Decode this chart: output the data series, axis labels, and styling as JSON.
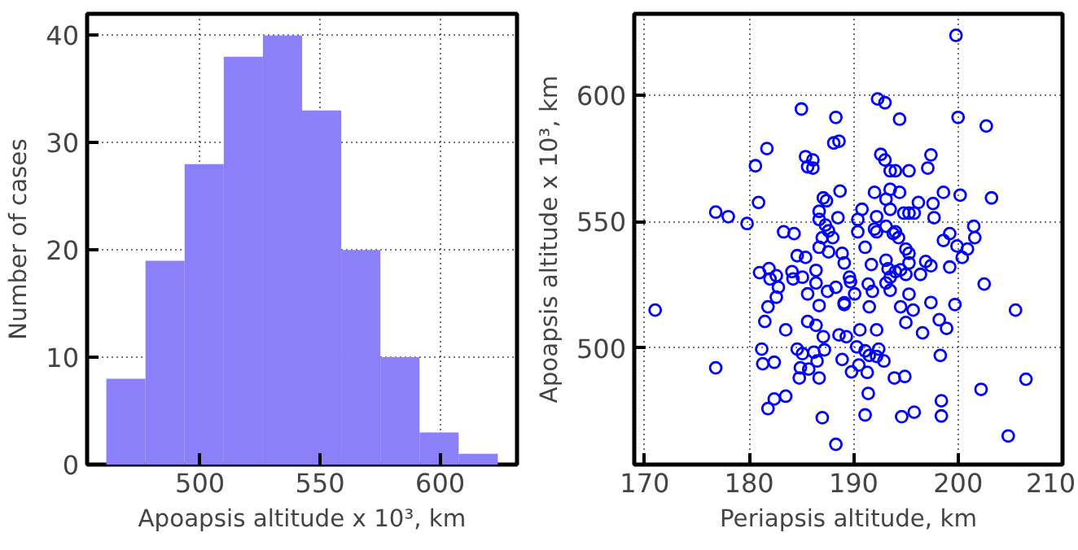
{
  "chart_data": [
    {
      "type": "histogram",
      "xlabel": "Apoapsis altitude x 10³, km",
      "ylabel": "Number of cases",
      "color": "#8b80f9",
      "bins": [
        461,
        477.3,
        493.6,
        509.9,
        526.2,
        542.5,
        558.8,
        575.1,
        591.4,
        607.7,
        624
      ],
      "values": [
        8,
        19,
        28,
        38,
        40,
        33,
        20,
        10,
        3,
        1
      ],
      "xlim": [
        453,
        632
      ],
      "ylim": [
        0,
        42
      ],
      "xticks": [
        500,
        550,
        600
      ],
      "yticks": [
        0,
        10,
        20,
        30,
        40
      ],
      "grid": true
    },
    {
      "type": "scatter",
      "xlabel": "Periapsis altitude, km",
      "ylabel": "Apoapsis altitude x 10³, km",
      "marker": "circle",
      "xlim": [
        169,
        210
      ],
      "ylim": [
        454,
        632
      ],
      "xticks": [
        170,
        180,
        190,
        200,
        210
      ],
      "yticks": [
        500,
        550,
        600
      ],
      "grid": true,
      "series": [
        {
          "color": "#0000ff",
          "x": [
            199.8,
            192.3,
            193.0,
            185.0,
            188.3,
            194.4,
            200.0,
            202.7,
            181.7,
            188.1,
            188.6,
            185.4,
            186.1,
            192.6,
            193.0,
            197.4,
            180.6,
            185.6,
            186.1,
            193.5,
            194.0,
            195.3,
            197.1,
            180.9,
            176.8,
            178.0,
            179.8,
            186.7,
            187.1,
            187.4,
            188.7,
            188.5,
            183.3,
            184.3,
            186.7,
            187.3,
            187.6,
            187.0,
            188.0,
            186.7,
            187.6,
            184.6,
            185.4,
            188.9,
            189.1,
            181.0,
            181.9,
            182.6,
            182.0,
            182.8,
            182.6,
            184.1,
            184.2,
            185.1,
            186.4,
            186.4,
            185.6,
            187.5,
            189.6,
            189.7,
            188.3,
            189.1,
            190.1,
            190.4,
            190.8,
            192.2,
            192.0,
            192.2,
            190.4,
            191.1,
            192.0,
            193.1,
            193.5,
            194.4,
            193.5,
            194.8,
            195.3,
            195.8,
            196.2,
            197.6,
            198.6,
            200.2,
            197.7,
            203.2,
            193.1,
            193.8,
            194.3,
            194.0,
            195.0,
            195.3,
            195.3,
            193.1,
            193.3,
            194.0,
            194.5,
            195.0,
            193.5,
            193.1,
            193.5,
            191.7,
            191.4,
            191.8,
            196.4,
            196.9,
            197.4,
            199.2,
            198.6,
            199.2,
            199.9,
            200.4,
            200.9,
            201.5,
            201.6,
            202.5,
            195.3,
            197.4,
            199.7,
            205.5,
            171.0,
            181.8,
            186.7,
            189.1,
            191.5,
            194.5,
            195.7,
            181.5,
            183.5,
            185.6,
            186.4,
            187.1,
            188.6,
            189.3,
            190.6,
            192.2,
            195.0,
            196.6,
            198.2,
            198.9,
            181.2,
            181.3,
            182.4,
            176.8,
            184.6,
            185.1,
            186.2,
            187.2,
            184.9,
            185.7,
            186.5,
            184.8,
            186.7,
            188.9,
            190.3,
            191.1,
            191.5,
            192.2,
            192.4,
            192.9,
            190.5,
            189.8,
            191.3,
            193.9,
            194.9,
            198.3,
            202.2,
            206.5,
            182.4,
            183.5,
            181.8,
            191.4,
            198.4,
            198.4,
            187.0,
            191.1,
            194.6,
            195.8,
            188.3,
            204.8
          ],
          "values": [
            623.5,
            598.4,
            596.9,
            594.4,
            591.1,
            590.4,
            591.1,
            587.7,
            578.8,
            581.0,
            581.7,
            575.6,
            574.3,
            576.5,
            574.3,
            576.3,
            572.0,
            571.6,
            571.1,
            570.0,
            570.0,
            570.0,
            571.1,
            557.5,
            553.7,
            551.9,
            549.2,
            554.0,
            559.3,
            558.2,
            562.0,
            551.5,
            545.9,
            545.2,
            550.8,
            548.6,
            546.3,
            543.6,
            543.6,
            539.8,
            538.0,
            536.5,
            535.8,
            537.4,
            533.6,
            529.8,
            531.4,
            528.6,
            527.3,
            524.0,
            520.1,
            530.2,
            527.3,
            528.0,
            530.7,
            525.7,
            521.4,
            522.4,
            528.0,
            526.2,
            524.0,
            517.9,
            521.4,
            550.8,
            554.8,
            551.9,
            547.0,
            545.9,
            545.9,
            539.8,
            561.5,
            558.8,
            562.7,
            561.5,
            554.8,
            553.3,
            553.3,
            553.3,
            557.5,
            557.1,
            561.5,
            560.4,
            551.5,
            559.3,
            548.1,
            545.2,
            543.6,
            545.9,
            539.1,
            537.4,
            533.6,
            534.7,
            531.3,
            530.2,
            530.9,
            529.1,
            528.0,
            525.7,
            522.8,
            533.0,
            525.3,
            522.4,
            529.1,
            534.2,
            532.5,
            532.0,
            542.5,
            545.2,
            540.3,
            535.8,
            539.1,
            548.1,
            543.6,
            525.3,
            521.3,
            518.0,
            517.2,
            515.0,
            515.0,
            516.3,
            516.8,
            517.2,
            516.3,
            516.3,
            515.0,
            510.5,
            507.2,
            510.5,
            509.0,
            504.5,
            505.2,
            504.5,
            507.2,
            507.2,
            510.1,
            506.0,
            511.2,
            507.8,
            499.6,
            493.8,
            494.4,
            492.2,
            499.6,
            497.8,
            498.4,
            499.3,
            492.2,
            491.7,
            494.9,
            488.2,
            488.2,
            495.5,
            500.5,
            498.9,
            497.1,
            496.7,
            499.6,
            494.9,
            493.3,
            490.6,
            490.4,
            488.2,
            488.8,
            497.1,
            483.7,
            487.7,
            479.9,
            481.0,
            476.1,
            482.1,
            479.2,
            473.2,
            472.5,
            473.6,
            472.9,
            474.7,
            462.0,
            465.3
          ]
        }
      ]
    }
  ]
}
